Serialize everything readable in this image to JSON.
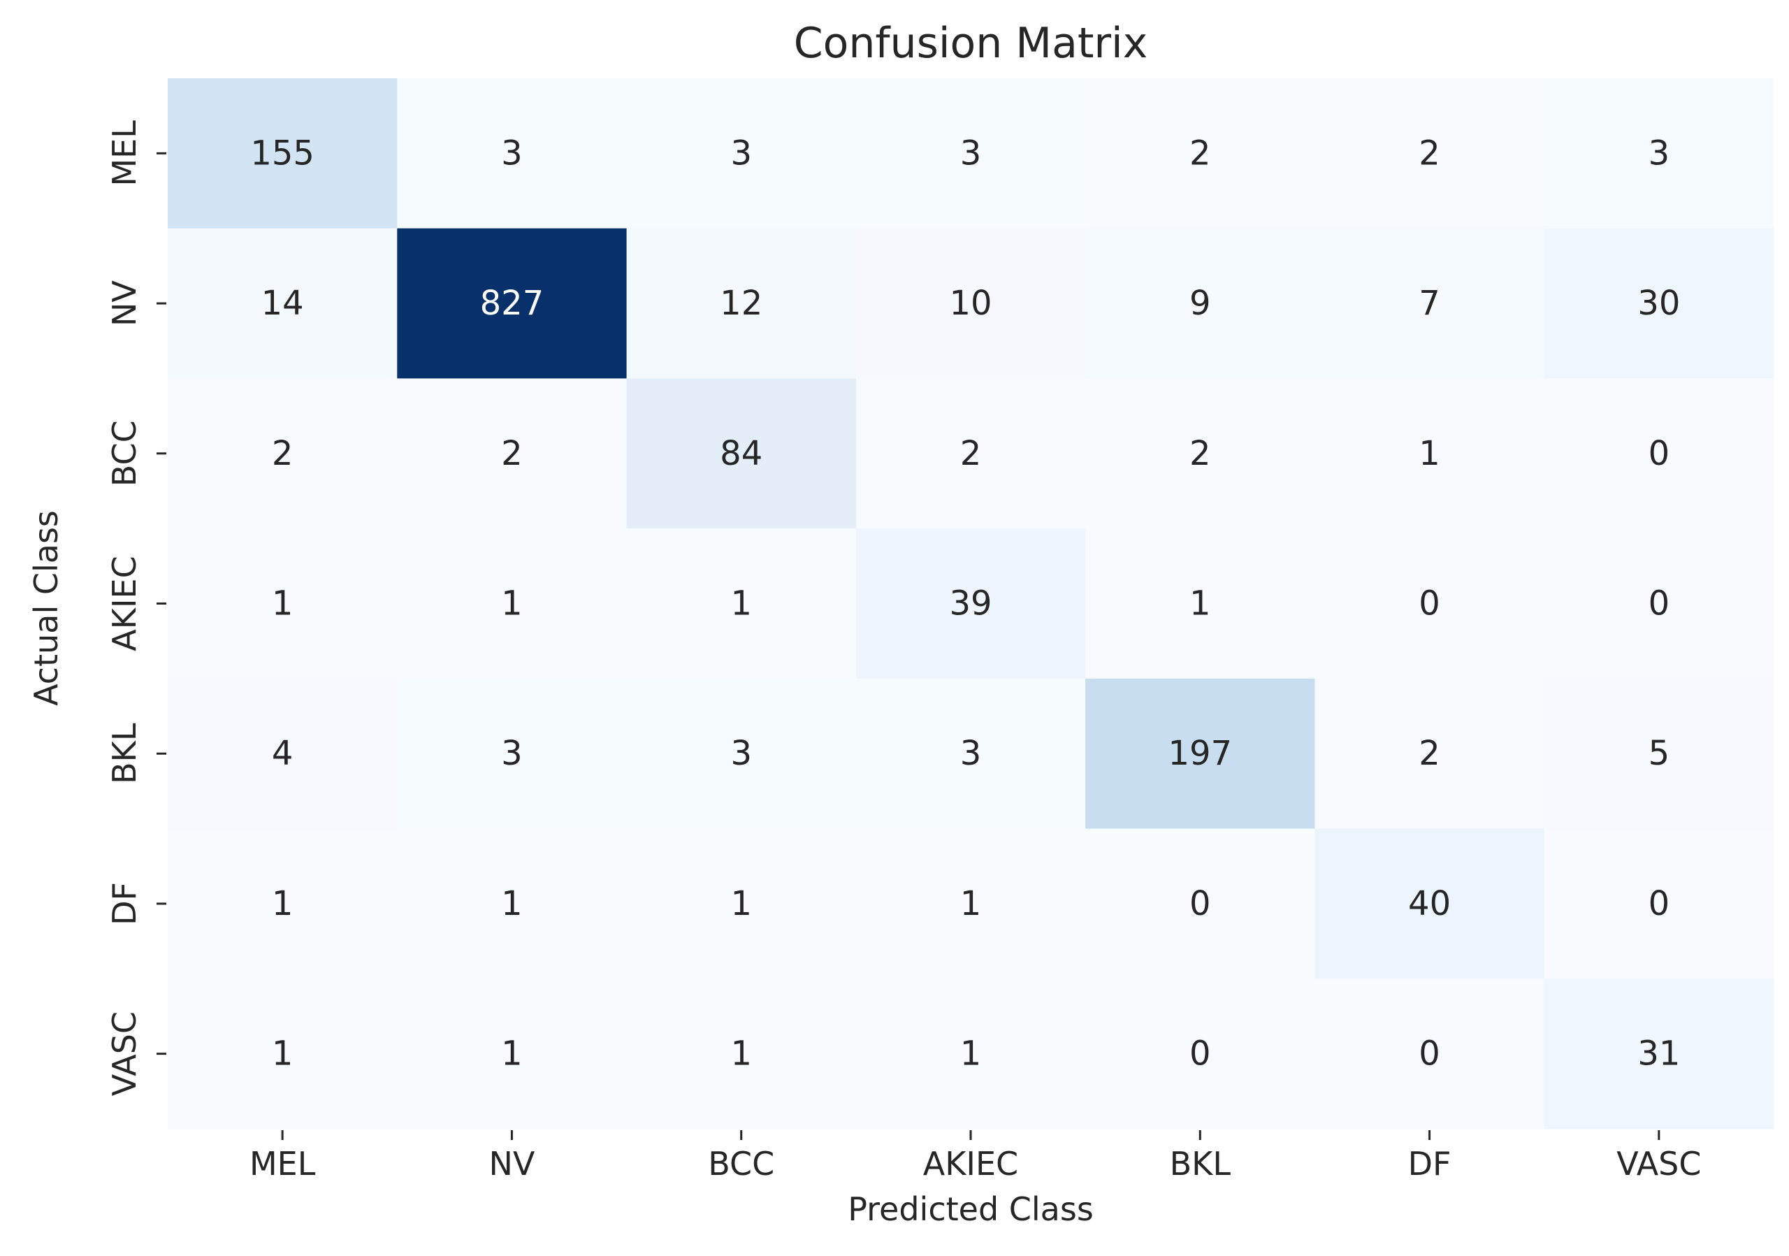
{
  "chart_data": {
    "type": "heatmap",
    "title": "Confusion Matrix",
    "xlabel": "Predicted Class",
    "ylabel": "Actual Class",
    "x_categories": [
      "MEL",
      "NV",
      "BCC",
      "AKIEC",
      "BKL",
      "DF",
      "VASC"
    ],
    "y_categories": [
      "MEL",
      "NV",
      "BCC",
      "AKIEC",
      "BKL",
      "DF",
      "VASC"
    ],
    "values": [
      [
        155,
        3,
        3,
        3,
        2,
        2,
        3
      ],
      [
        14,
        827,
        12,
        10,
        9,
        7,
        30
      ],
      [
        2,
        2,
        84,
        2,
        2,
        1,
        0
      ],
      [
        1,
        1,
        1,
        39,
        1,
        0,
        0
      ],
      [
        4,
        3,
        3,
        3,
        197,
        2,
        5
      ],
      [
        1,
        1,
        1,
        1,
        0,
        40,
        0
      ],
      [
        1,
        1,
        1,
        1,
        0,
        0,
        31
      ]
    ],
    "value_range": [
      0,
      827
    ],
    "colormap": "Blues",
    "colors": {
      "min": "#f7fbff",
      "max": "#08306b",
      "text_dark": "#262626",
      "text_light": "#ffffff"
    },
    "colorbar": false,
    "grid": false
  }
}
